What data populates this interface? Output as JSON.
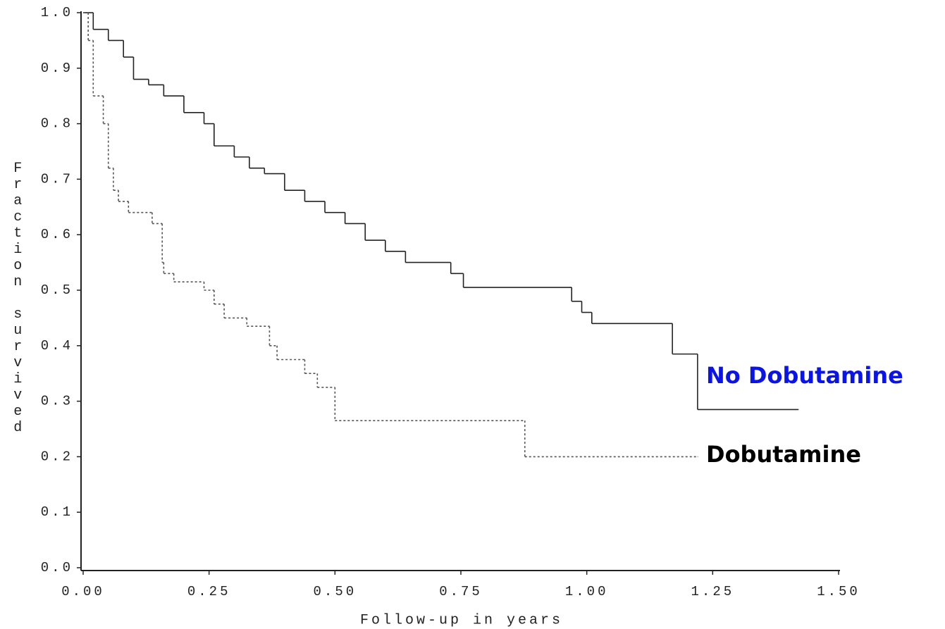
{
  "chart_data": {
    "type": "step",
    "x_label": "Follow-up in years",
    "y_label": "Fraction survived",
    "xlim": [
      0,
      1.5
    ],
    "ylim": [
      0,
      1.0
    ],
    "xticks": [
      {
        "value": 0,
        "label": "0.00"
      },
      {
        "value": 0.25,
        "label": "0.25"
      },
      {
        "value": 0.5,
        "label": "0.50"
      },
      {
        "value": 0.75,
        "label": "0.75"
      },
      {
        "value": 1,
        "label": "1.00"
      },
      {
        "value": 1.25,
        "label": "1.25"
      },
      {
        "value": 1.5,
        "label": "1.50"
      }
    ],
    "yticks": [
      {
        "value": 0,
        "label": "0.0"
      },
      0.1,
      0.2,
      0.3,
      0.4,
      0.5,
      0.6,
      0.7,
      0.8,
      0.9,
      {
        "value": 1,
        "label": "1.0"
      }
    ],
    "series": [
      {
        "name": "No Dobutamine",
        "color": "#222222",
        "dash": "none",
        "label_color": "#0a14e6",
        "x": [
          0,
          0.02,
          0.05,
          0.08,
          0.1,
          0.13,
          0.16,
          0.2,
          0.24,
          0.26,
          0.3,
          0.33,
          0.36,
          0.4,
          0.44,
          0.48,
          0.52,
          0.56,
          0.6,
          0.64,
          0.73,
          0.755,
          0.97,
          0.99,
          1.01,
          1.17,
          1.22,
          1.42
        ],
        "values": [
          1.0,
          0.97,
          0.95,
          0.92,
          0.88,
          0.87,
          0.85,
          0.82,
          0.8,
          0.76,
          0.74,
          0.72,
          0.71,
          0.68,
          0.66,
          0.64,
          0.62,
          0.59,
          0.57,
          0.55,
          0.53,
          0.505,
          0.48,
          0.46,
          0.44,
          0.385,
          0.285,
          0.285
        ]
      },
      {
        "name": "Dobutamine",
        "color": "#555555",
        "dash": "3 3",
        "label_color": "#000000",
        "x": [
          0,
          0.01,
          0.02,
          0.04,
          0.05,
          0.06,
          0.07,
          0.09,
          0.137,
          0.157,
          0.16,
          0.18,
          0.24,
          0.26,
          0.28,
          0.325,
          0.37,
          0.385,
          0.44,
          0.465,
          0.5,
          0.877,
          1.22
        ],
        "values": [
          1.0,
          0.95,
          0.85,
          0.8,
          0.72,
          0.68,
          0.66,
          0.64,
          0.62,
          0.55,
          0.53,
          0.515,
          0.5,
          0.475,
          0.45,
          0.435,
          0.4,
          0.375,
          0.35,
          0.325,
          0.265,
          0.2,
          0.2
        ]
      }
    ]
  }
}
